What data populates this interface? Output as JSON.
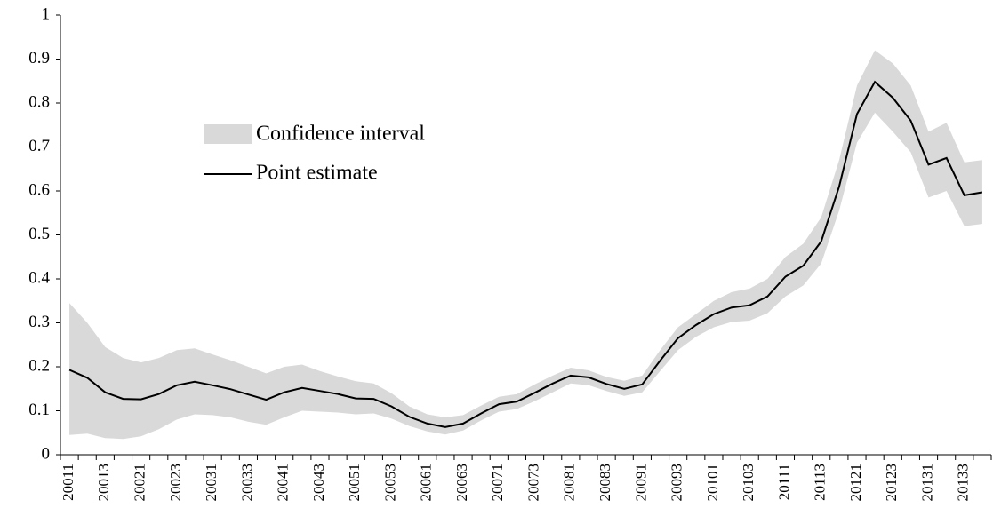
{
  "chart_data": {
    "type": "line",
    "categories": [
      "20011",
      null,
      "20013",
      null,
      "20021",
      null,
      "20023",
      null,
      "20031",
      null,
      "20033",
      null,
      "20041",
      null,
      "20043",
      null,
      "20051",
      null,
      "20053",
      null,
      "20061",
      null,
      "20063",
      null,
      "20071",
      null,
      "20073",
      null,
      "20081",
      null,
      "20083",
      null,
      "20091",
      null,
      "20093",
      null,
      "20101",
      null,
      "20103",
      null,
      "20111",
      null,
      "20113",
      null,
      "20121",
      null,
      "20123",
      null,
      "20131",
      null,
      "20133",
      null
    ],
    "series": [
      {
        "name": "Point estimate",
        "color": "#000000",
        "values": [
          0.193,
          0.175,
          0.142,
          0.127,
          0.126,
          0.138,
          0.158,
          0.166,
          0.158,
          0.149,
          0.137,
          0.125,
          0.142,
          0.152,
          0.145,
          0.138,
          0.128,
          0.127,
          0.11,
          0.086,
          0.071,
          0.063,
          0.071,
          0.094,
          0.115,
          0.121,
          0.141,
          0.162,
          0.18,
          0.176,
          0.161,
          0.15,
          0.16,
          0.214,
          0.265,
          0.295,
          0.32,
          0.335,
          0.34,
          0.36,
          0.405,
          0.43,
          0.485,
          0.61,
          0.775,
          0.848,
          0.812,
          0.76,
          0.66,
          0.675,
          0.59,
          0.597
        ]
      }
    ],
    "band": {
      "name": "Confidence interval",
      "color": "#d9d9d9",
      "upper": [
        0.345,
        0.3,
        0.245,
        0.22,
        0.21,
        0.22,
        0.238,
        0.242,
        0.228,
        0.215,
        0.2,
        0.185,
        0.2,
        0.205,
        0.19,
        0.178,
        0.167,
        0.162,
        0.14,
        0.11,
        0.092,
        0.085,
        0.09,
        0.112,
        0.132,
        0.138,
        0.16,
        0.18,
        0.198,
        0.192,
        0.177,
        0.168,
        0.18,
        0.238,
        0.29,
        0.32,
        0.35,
        0.37,
        0.378,
        0.4,
        0.45,
        0.48,
        0.54,
        0.67,
        0.84,
        0.92,
        0.89,
        0.84,
        0.735,
        0.755,
        0.665,
        0.67
      ],
      "lower": [
        0.045,
        0.048,
        0.038,
        0.036,
        0.042,
        0.058,
        0.08,
        0.092,
        0.09,
        0.085,
        0.075,
        0.068,
        0.085,
        0.1,
        0.098,
        0.096,
        0.092,
        0.094,
        0.082,
        0.065,
        0.053,
        0.046,
        0.055,
        0.078,
        0.098,
        0.104,
        0.122,
        0.142,
        0.162,
        0.158,
        0.145,
        0.134,
        0.142,
        0.19,
        0.238,
        0.268,
        0.29,
        0.302,
        0.305,
        0.322,
        0.36,
        0.385,
        0.435,
        0.555,
        0.71,
        0.778,
        0.735,
        0.688,
        0.585,
        0.6,
        0.52,
        0.525
      ]
    },
    "ylim": [
      0,
      1
    ],
    "yticks": [
      0,
      0.1,
      0.2,
      0.3,
      0.4,
      0.5,
      0.6,
      0.7,
      0.8,
      0.9,
      1
    ],
    "grid": false
  }
}
